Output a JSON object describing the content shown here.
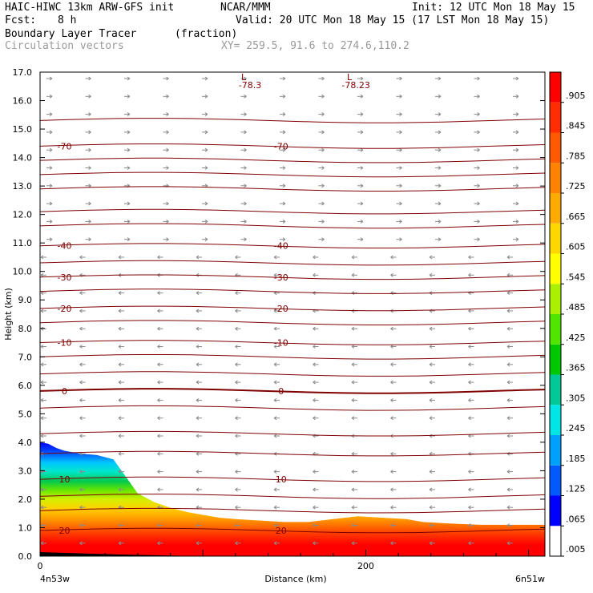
{
  "header": {
    "model": "HAIC-HIWC 13km ARW-GFS init",
    "org": "NCAR/MMM",
    "init": "Init: 12 UTC Mon 18 May 15",
    "fcst_label": "Fcst:",
    "fcst_value": "8 h",
    "valid": "Valid: 20 UTC Mon 18 May 15 (17 LST Mon 18 May 15)",
    "field": "Boundary Layer Tracer",
    "field_unit": "(fraction)",
    "vectors": "Circulation vectors",
    "xy": "XY= 259.5, 91.6 to 274.6,110.2"
  },
  "chart_data": {
    "type": "heatmap",
    "ylabel": "Height (km)",
    "xlabel": "Distance (km)",
    "ylim": [
      0,
      17
    ],
    "xlim": [
      0,
      310
    ],
    "y_ticks": [
      "0.0",
      "1.0",
      "2.0",
      "3.0",
      "4.0",
      "5.0",
      "6.0",
      "7.0",
      "8.0",
      "9.0",
      "10.0",
      "11.0",
      "12.0",
      "13.0",
      "14.0",
      "15.0",
      "16.0",
      "17.0"
    ],
    "x_ticks": [
      {
        "value": 0,
        "label": "0"
      },
      {
        "value": 200,
        "label": "200"
      }
    ],
    "x_end_labels": {
      "left": "4n53w",
      "right": "6n51w"
    },
    "colorbar_labels": [
      ".005",
      ".065",
      ".125",
      ".185",
      ".245",
      ".305",
      ".365",
      ".425",
      ".485",
      ".545",
      ".605",
      ".665",
      ".725",
      ".785",
      ".845",
      ".905"
    ],
    "colorbar_colors": [
      "#ffffff",
      "#0000ff",
      "#005aff",
      "#00a0ff",
      "#00e6e6",
      "#00c896",
      "#00c800",
      "#50e600",
      "#aaf000",
      "#ffff00",
      "#ffd700",
      "#ffaa00",
      "#ff8200",
      "#ff5a00",
      "#ff2d00",
      "#ff0000"
    ],
    "tracer_top_km": [
      [
        0,
        4.0
      ],
      [
        5,
        3.95
      ],
      [
        10,
        3.8
      ],
      [
        15,
        3.7
      ],
      [
        25,
        3.6
      ],
      [
        35,
        3.55
      ],
      [
        45,
        3.4
      ],
      [
        50,
        3.0
      ],
      [
        55,
        2.6
      ],
      [
        60,
        2.2
      ],
      [
        70,
        1.9
      ],
      [
        80,
        1.7
      ],
      [
        90,
        1.55
      ],
      [
        100,
        1.45
      ],
      [
        110,
        1.35
      ],
      [
        120,
        1.3
      ],
      [
        135,
        1.25
      ],
      [
        150,
        1.2
      ],
      [
        165,
        1.2
      ],
      [
        180,
        1.3
      ],
      [
        195,
        1.4
      ],
      [
        210,
        1.35
      ],
      [
        225,
        1.3
      ],
      [
        235,
        1.2
      ],
      [
        250,
        1.15
      ],
      [
        270,
        1.1
      ],
      [
        290,
        1.1
      ],
      [
        310,
        1.1
      ]
    ],
    "temperature_contours": [
      {
        "label": "-70",
        "km": 14.4
      },
      {
        "label": "-40",
        "km": 10.9
      },
      {
        "label": "-30",
        "km": 9.8
      },
      {
        "label": "-20",
        "km": 8.7
      },
      {
        "label": "-10",
        "km": 7.5
      },
      {
        "label": "0",
        "km": 5.8
      },
      {
        "label": "10",
        "km": 2.7
      },
      {
        "label": "20",
        "km": 0.9
      }
    ],
    "extra_contours_km": [
      15.3,
      13.9,
      13.4,
      12.9,
      12.1,
      11.6,
      10.3,
      9.3,
      8.2,
      7.0,
      6.4,
      5.2,
      4.3,
      3.6,
      2.1,
      1.6
    ],
    "lows": [
      {
        "label": "L",
        "value": "-78.3",
        "x": 125
      },
      {
        "label": "L",
        "value": "-78.23",
        "x": 190
      }
    ]
  }
}
